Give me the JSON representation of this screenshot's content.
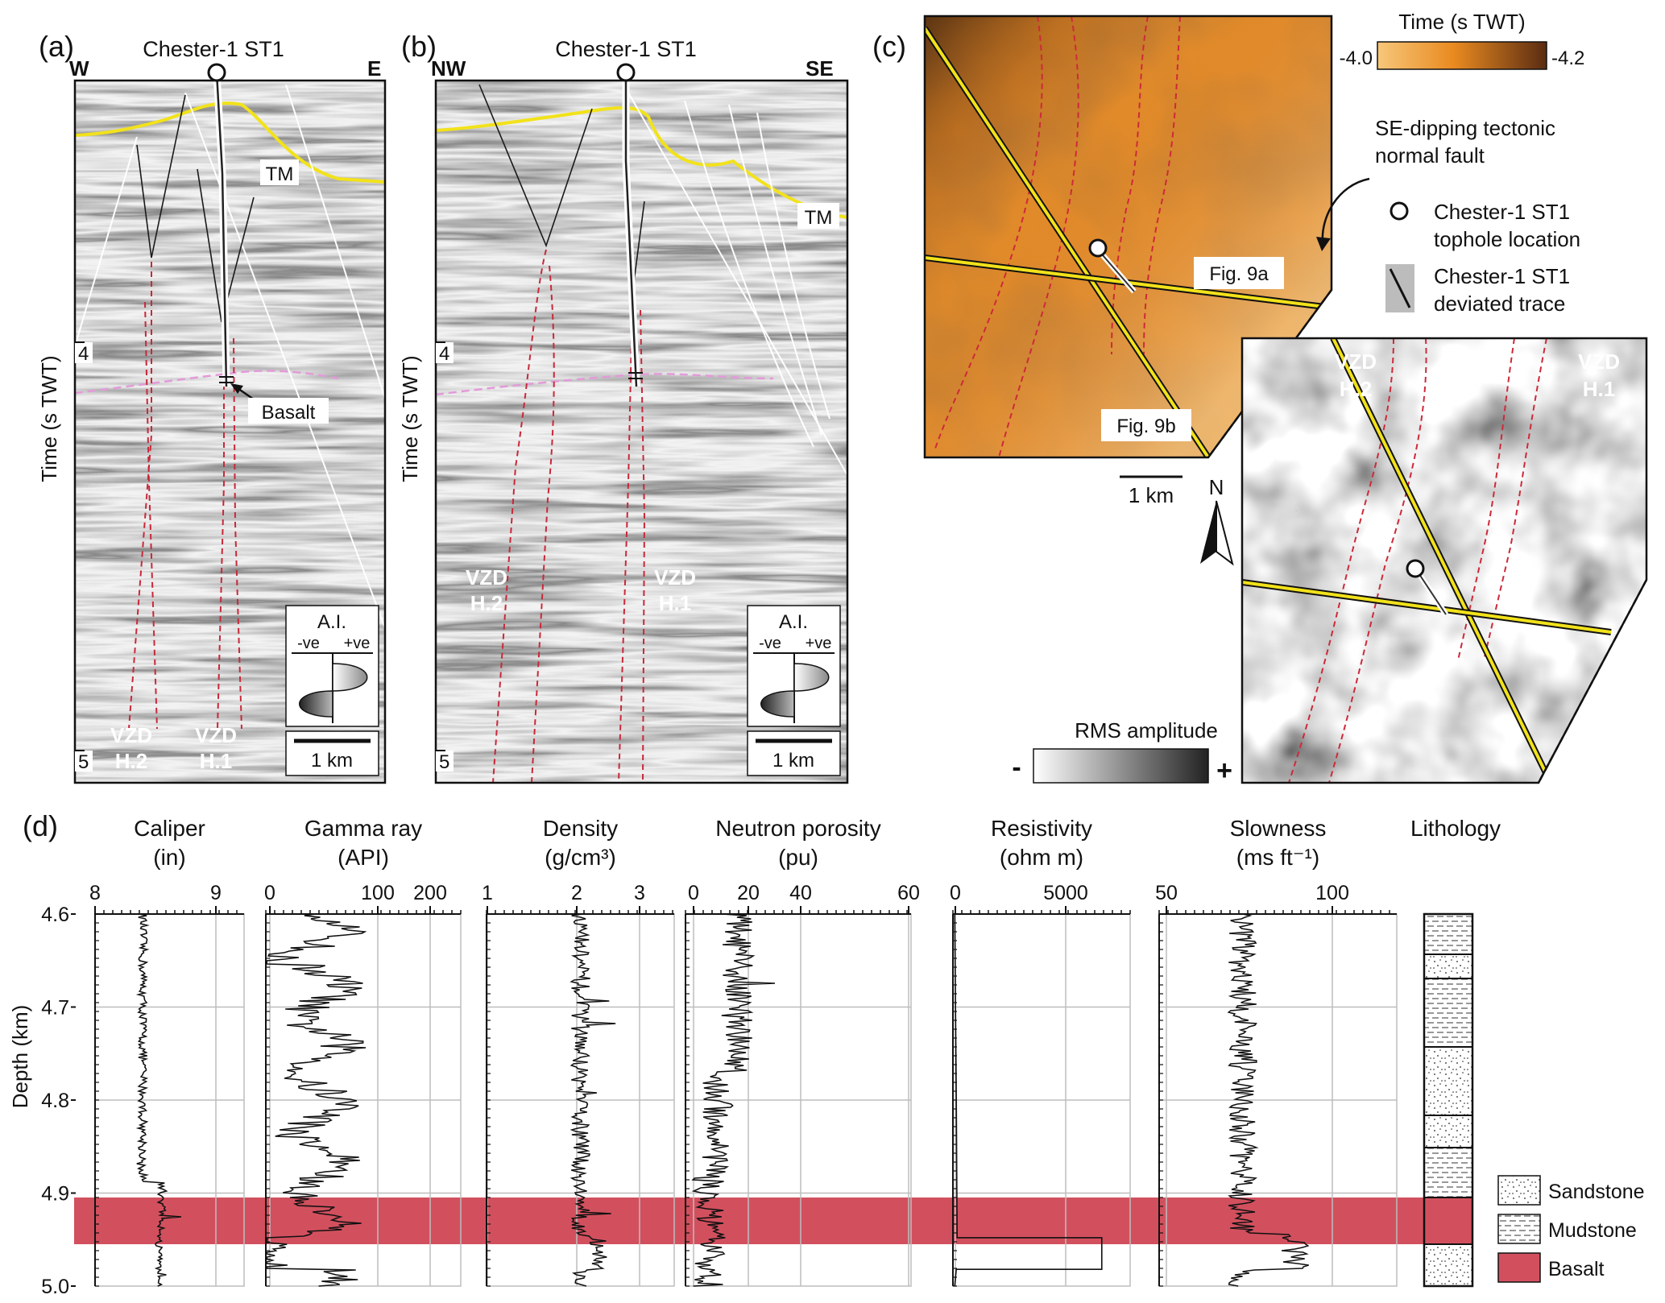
{
  "panels": {
    "a": {
      "letter": "(a)",
      "well": "Chester-1 ST1",
      "left_dir": "W",
      "right_dir": "E",
      "axis_label": "Time (s TWT)",
      "tick_4": "4",
      "tick_5": "5",
      "horizon": "TM",
      "basalt": "Basalt",
      "vzd2_l1": "VZD",
      "vzd2_l2": "H.2",
      "vzd1_l1": "VZD",
      "vzd1_l2": "H.1",
      "ai_title": "A.I.",
      "ai_neg": "-ve",
      "ai_pos": "+ve",
      "scale": "1 km"
    },
    "b": {
      "letter": "(b)",
      "well": "Chester-1 ST1",
      "left_dir": "NW",
      "right_dir": "SE",
      "axis_label": "Time (s TWT)",
      "tick_4": "4",
      "tick_5": "5",
      "horizon": "TM",
      "vzd2_l1": "VZD",
      "vzd2_l2": "H.2",
      "vzd1_l1": "VZD",
      "vzd1_l2": "H.1",
      "ai_title": "A.I.",
      "ai_neg": "-ve",
      "ai_pos": "+ve",
      "scale": "1 km"
    },
    "c": {
      "letter": "(c)",
      "time_title": "Time (s TWT)",
      "time_min": "-4.0",
      "time_max": "-4.2",
      "fault_l1": "SE-dipping tectonic",
      "fault_l2": "normal fault",
      "tophole_l1": "Chester-1 ST1",
      "tophole_l2": "tophole location",
      "trace_l1": "Chester-1 ST1",
      "trace_l2": "deviated trace",
      "fig9a": "Fig. 9a",
      "fig9b": "Fig. 9b",
      "scale": "1 km",
      "north": "N",
      "vzd2_l1": "VZD",
      "vzd2_l2": "H.2",
      "vzd1_l1": "VZD",
      "vzd1_l2": "H.1",
      "rms_title": "RMS amplitude",
      "rms_minus": "-",
      "rms_plus": "+",
      "colors": {
        "time_light": "#f7c77a",
        "time_dark": "#5a2c12",
        "fault": "#cc2a3a",
        "line": "#f2e21a"
      }
    },
    "d": {
      "letter": "(d)",
      "depth_label": "Depth (km)",
      "depth_ticks": [
        "4.6",
        "4.7",
        "4.8",
        "4.9",
        "5.0"
      ],
      "basalt_color": "#d2505e",
      "tracks": [
        {
          "title": "Caliper",
          "unit": "(in)",
          "ticks": [
            "8",
            "9"
          ]
        },
        {
          "title": "Gamma ray",
          "unit": "(API)",
          "ticks": [
            "0",
            "100",
            "200"
          ]
        },
        {
          "title": "Density",
          "unit": "(g/cm³)",
          "ticks": [
            "1",
            "2",
            "3"
          ]
        },
        {
          "title": "Neutron porosity",
          "unit": "(pu)",
          "ticks": [
            "0",
            "20",
            "40",
            "60"
          ]
        },
        {
          "title": "Resistivity",
          "unit": "(ohm m)",
          "ticks": [
            "0",
            "5000"
          ]
        },
        {
          "title": "Slowness",
          "unit": "(ms ft⁻¹)",
          "ticks": [
            "50",
            "100"
          ]
        }
      ],
      "lithology_title": "Lithology",
      "legend": {
        "sandstone": "Sandstone",
        "mudstone": "Mudstone",
        "basalt": "Basalt"
      }
    }
  }
}
